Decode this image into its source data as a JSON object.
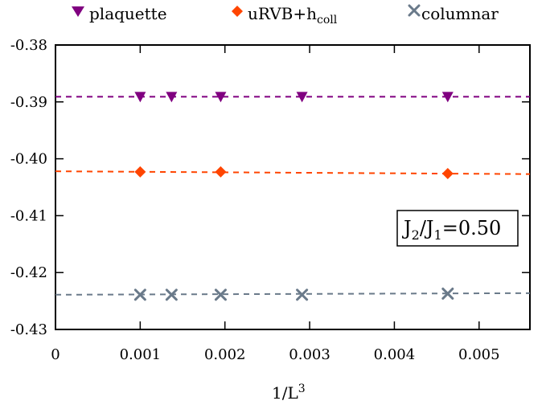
{
  "chart_data": {
    "type": "scatter",
    "xlabel_base": "1/L",
    "xlabel_sup": "3",
    "xlim": [
      0,
      0.0056
    ],
    "ylim": [
      -0.43,
      -0.38
    ],
    "x_ticks": [
      0,
      0.001,
      0.002,
      0.003,
      0.004,
      0.005
    ],
    "x_tick_labels": [
      "0",
      "0.001",
      "0.002",
      "0.003",
      "0.004",
      "0.005"
    ],
    "y_ticks": [
      -0.38,
      -0.39,
      -0.4,
      -0.41,
      -0.42,
      -0.43
    ],
    "y_tick_labels": [
      "-0.38",
      "-0.39",
      "-0.40",
      "-0.41",
      "-0.42",
      "-0.43"
    ],
    "grid": false,
    "legend_placement": "top",
    "annotation": {
      "parts": [
        {
          "text": "J",
          "sub": false
        },
        {
          "text": "2",
          "sub": true
        },
        {
          "text": "/J",
          "sub": false
        },
        {
          "text": "1",
          "sub": true
        },
        {
          "text": "=0.50",
          "sub": false
        }
      ],
      "placement": "right"
    },
    "series": [
      {
        "name_base": "plaquette",
        "name_sub": "",
        "marker": "triangle-down",
        "color": "#800080",
        "x": [
          0.001,
          0.00137,
          0.00195,
          0.00291,
          0.00463
        ],
        "y": [
          -0.3891,
          -0.3891,
          -0.3891,
          -0.3891,
          -0.3891
        ],
        "fit": {
          "slope": 0.0,
          "intercept": -0.3891
        }
      },
      {
        "name_base": "uRVB+h",
        "name_sub": "coll",
        "marker": "diamond",
        "color": "#ff4500",
        "x": [
          0.001,
          0.00195,
          0.00463
        ],
        "y": [
          -0.4023,
          -0.4023,
          -0.4026
        ],
        "fit": {
          "slope": -0.088,
          "intercept": -0.4022
        }
      },
      {
        "name_base": "columnar",
        "name_sub": "",
        "marker": "x",
        "color": "#6a7a8a",
        "x": [
          0.001,
          0.00137,
          0.00195,
          0.00291,
          0.00463
        ],
        "y": [
          -0.4239,
          -0.4239,
          -0.4239,
          -0.4239,
          -0.4237
        ],
        "fit": {
          "slope": 0.05,
          "intercept": -0.4239
        }
      }
    ]
  }
}
